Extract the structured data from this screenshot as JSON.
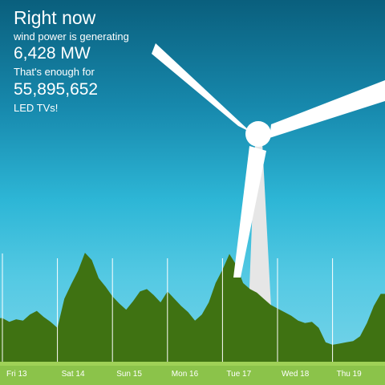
{
  "headline": "Right now",
  "subhead": "wind power is generating",
  "power_value": "6,428 MW",
  "enough_label": "That's enough for",
  "equivalent_count": "55,895,652",
  "equivalent_unit": "LED TVs!",
  "colors": {
    "sky_top": "#0a5f7d",
    "sky_bottom": "#7dd6ea",
    "area_fill": "#3f7212",
    "ground_strip": "#8bc34a",
    "turbine": "#ffffff"
  },
  "icons": [
    "wind-turbine-icon"
  ],
  "chart_data": {
    "type": "area",
    "title": "",
    "xlabel": "",
    "ylabel": "",
    "days": [
      "Fri 13",
      "Sat 14",
      "Sun 15",
      "Mon 16",
      "Tue 17",
      "Wed 18",
      "Thu 19"
    ],
    "samples_per_day": 8,
    "ylim": [
      0,
      10
    ],
    "values": [
      3.6,
      3.3,
      3.5,
      3.4,
      3.9,
      4.2,
      3.7,
      3.3,
      2.8,
      5.2,
      6.4,
      7.5,
      9.0,
      8.4,
      6.9,
      6.2,
      5.4,
      4.8,
      4.3,
      5.0,
      5.8,
      6.0,
      5.5,
      4.9,
      5.8,
      5.2,
      4.6,
      4.1,
      3.4,
      3.9,
      4.9,
      6.5,
      7.6,
      8.9,
      8.0,
      6.5,
      6.0,
      5.7,
      5.2,
      4.7,
      4.4,
      4.1,
      3.8,
      3.4,
      3.2,
      3.3,
      2.8,
      1.6,
      1.4,
      1.5,
      1.6,
      1.7,
      2.1,
      3.2,
      4.6,
      5.6
    ]
  }
}
